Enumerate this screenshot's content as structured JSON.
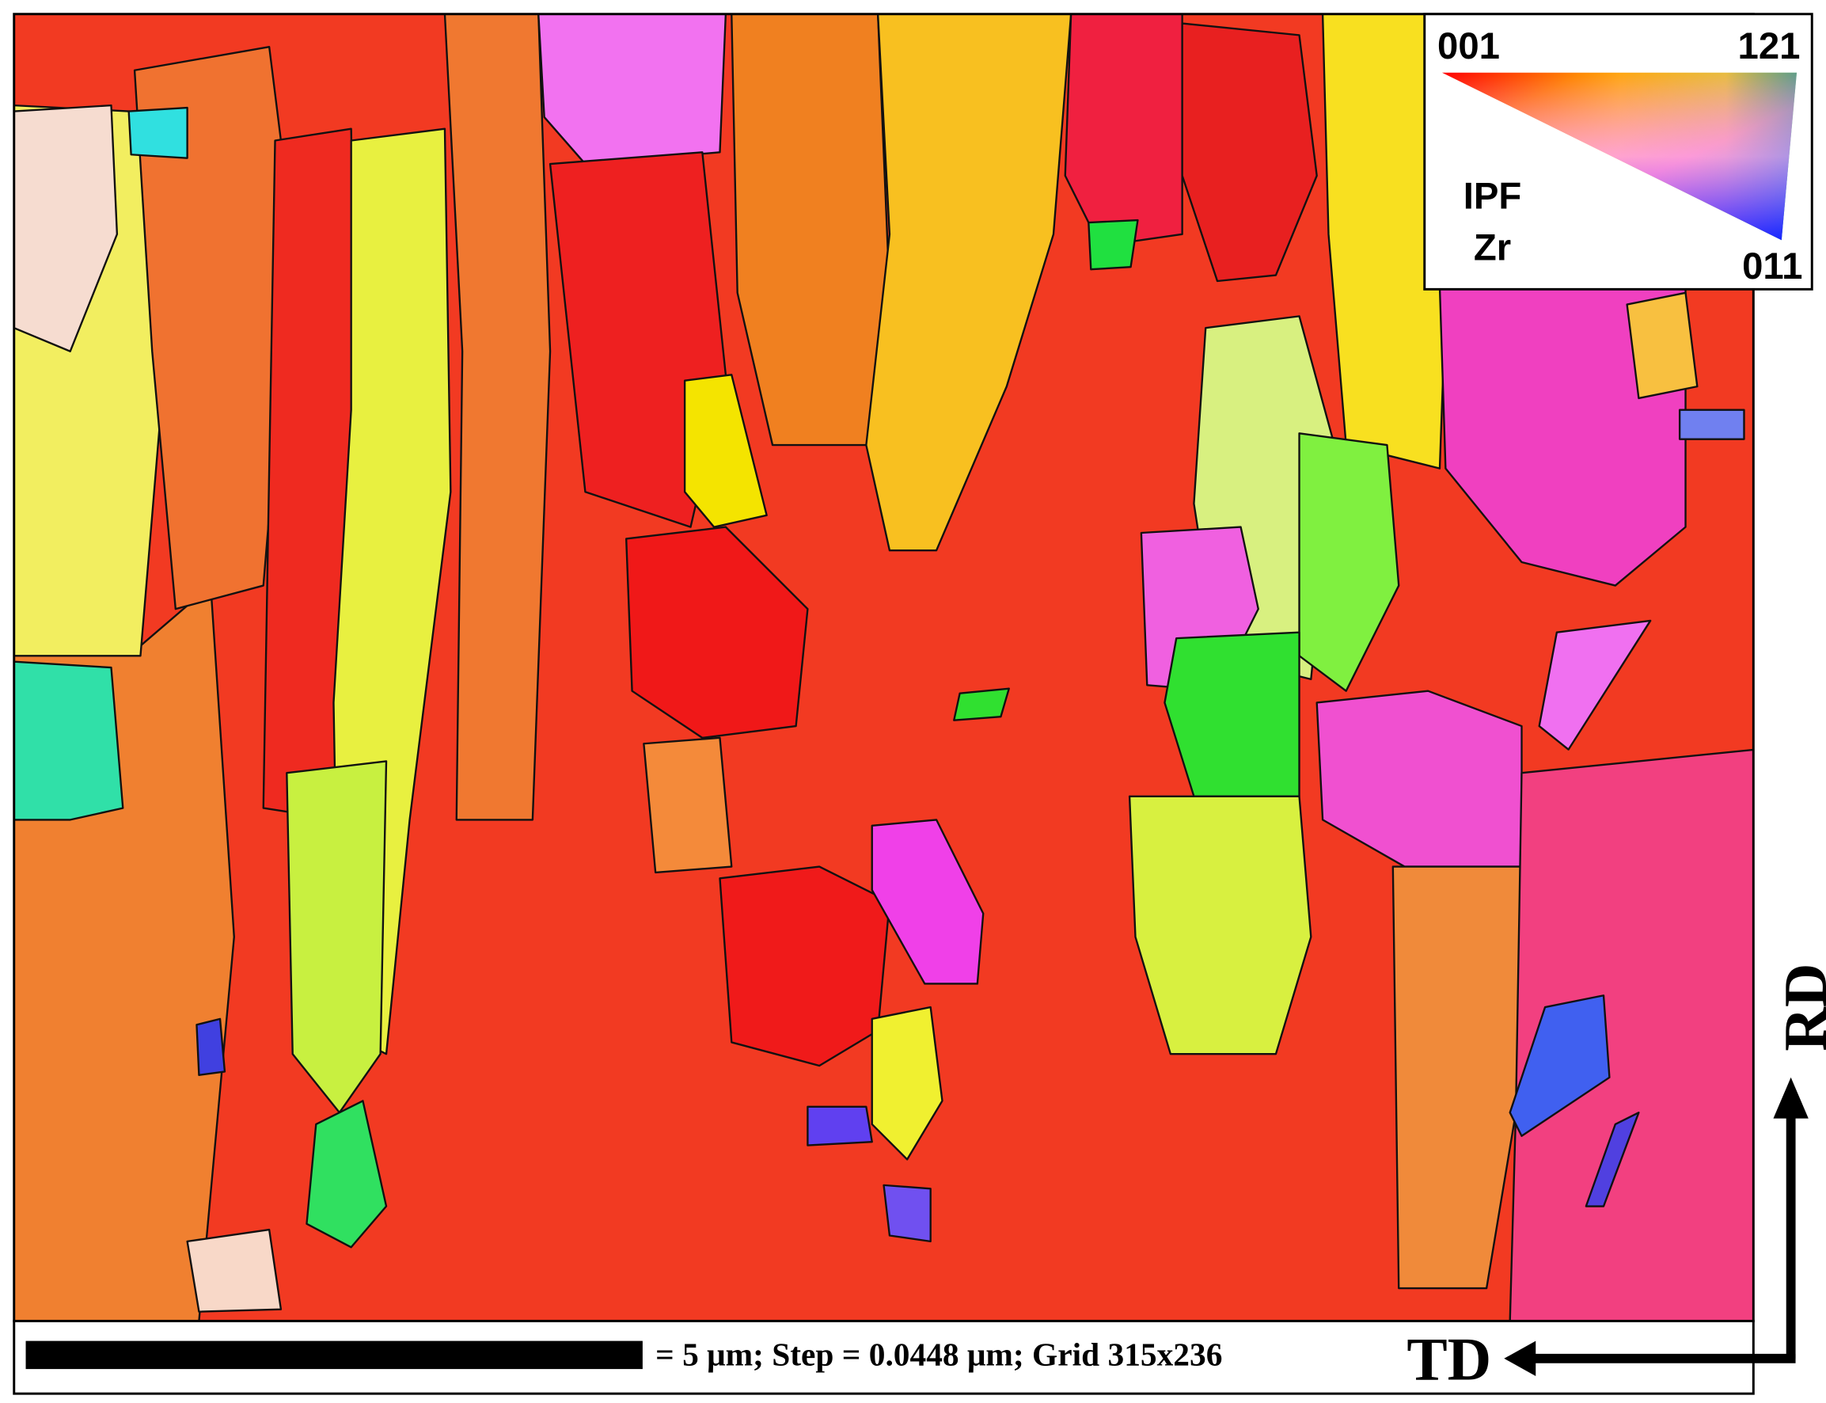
{
  "legend": {
    "corners": {
      "top_left": "001",
      "top_right": "121",
      "bottom_right": "011"
    },
    "title": [
      "IPF",
      "Zr"
    ]
  },
  "scale_bar": {
    "text": "= 5 μm; Step = 0.0448 μm; Grid 315x236"
  },
  "axes": {
    "vertical": "RD",
    "horizontal": "TD"
  }
}
